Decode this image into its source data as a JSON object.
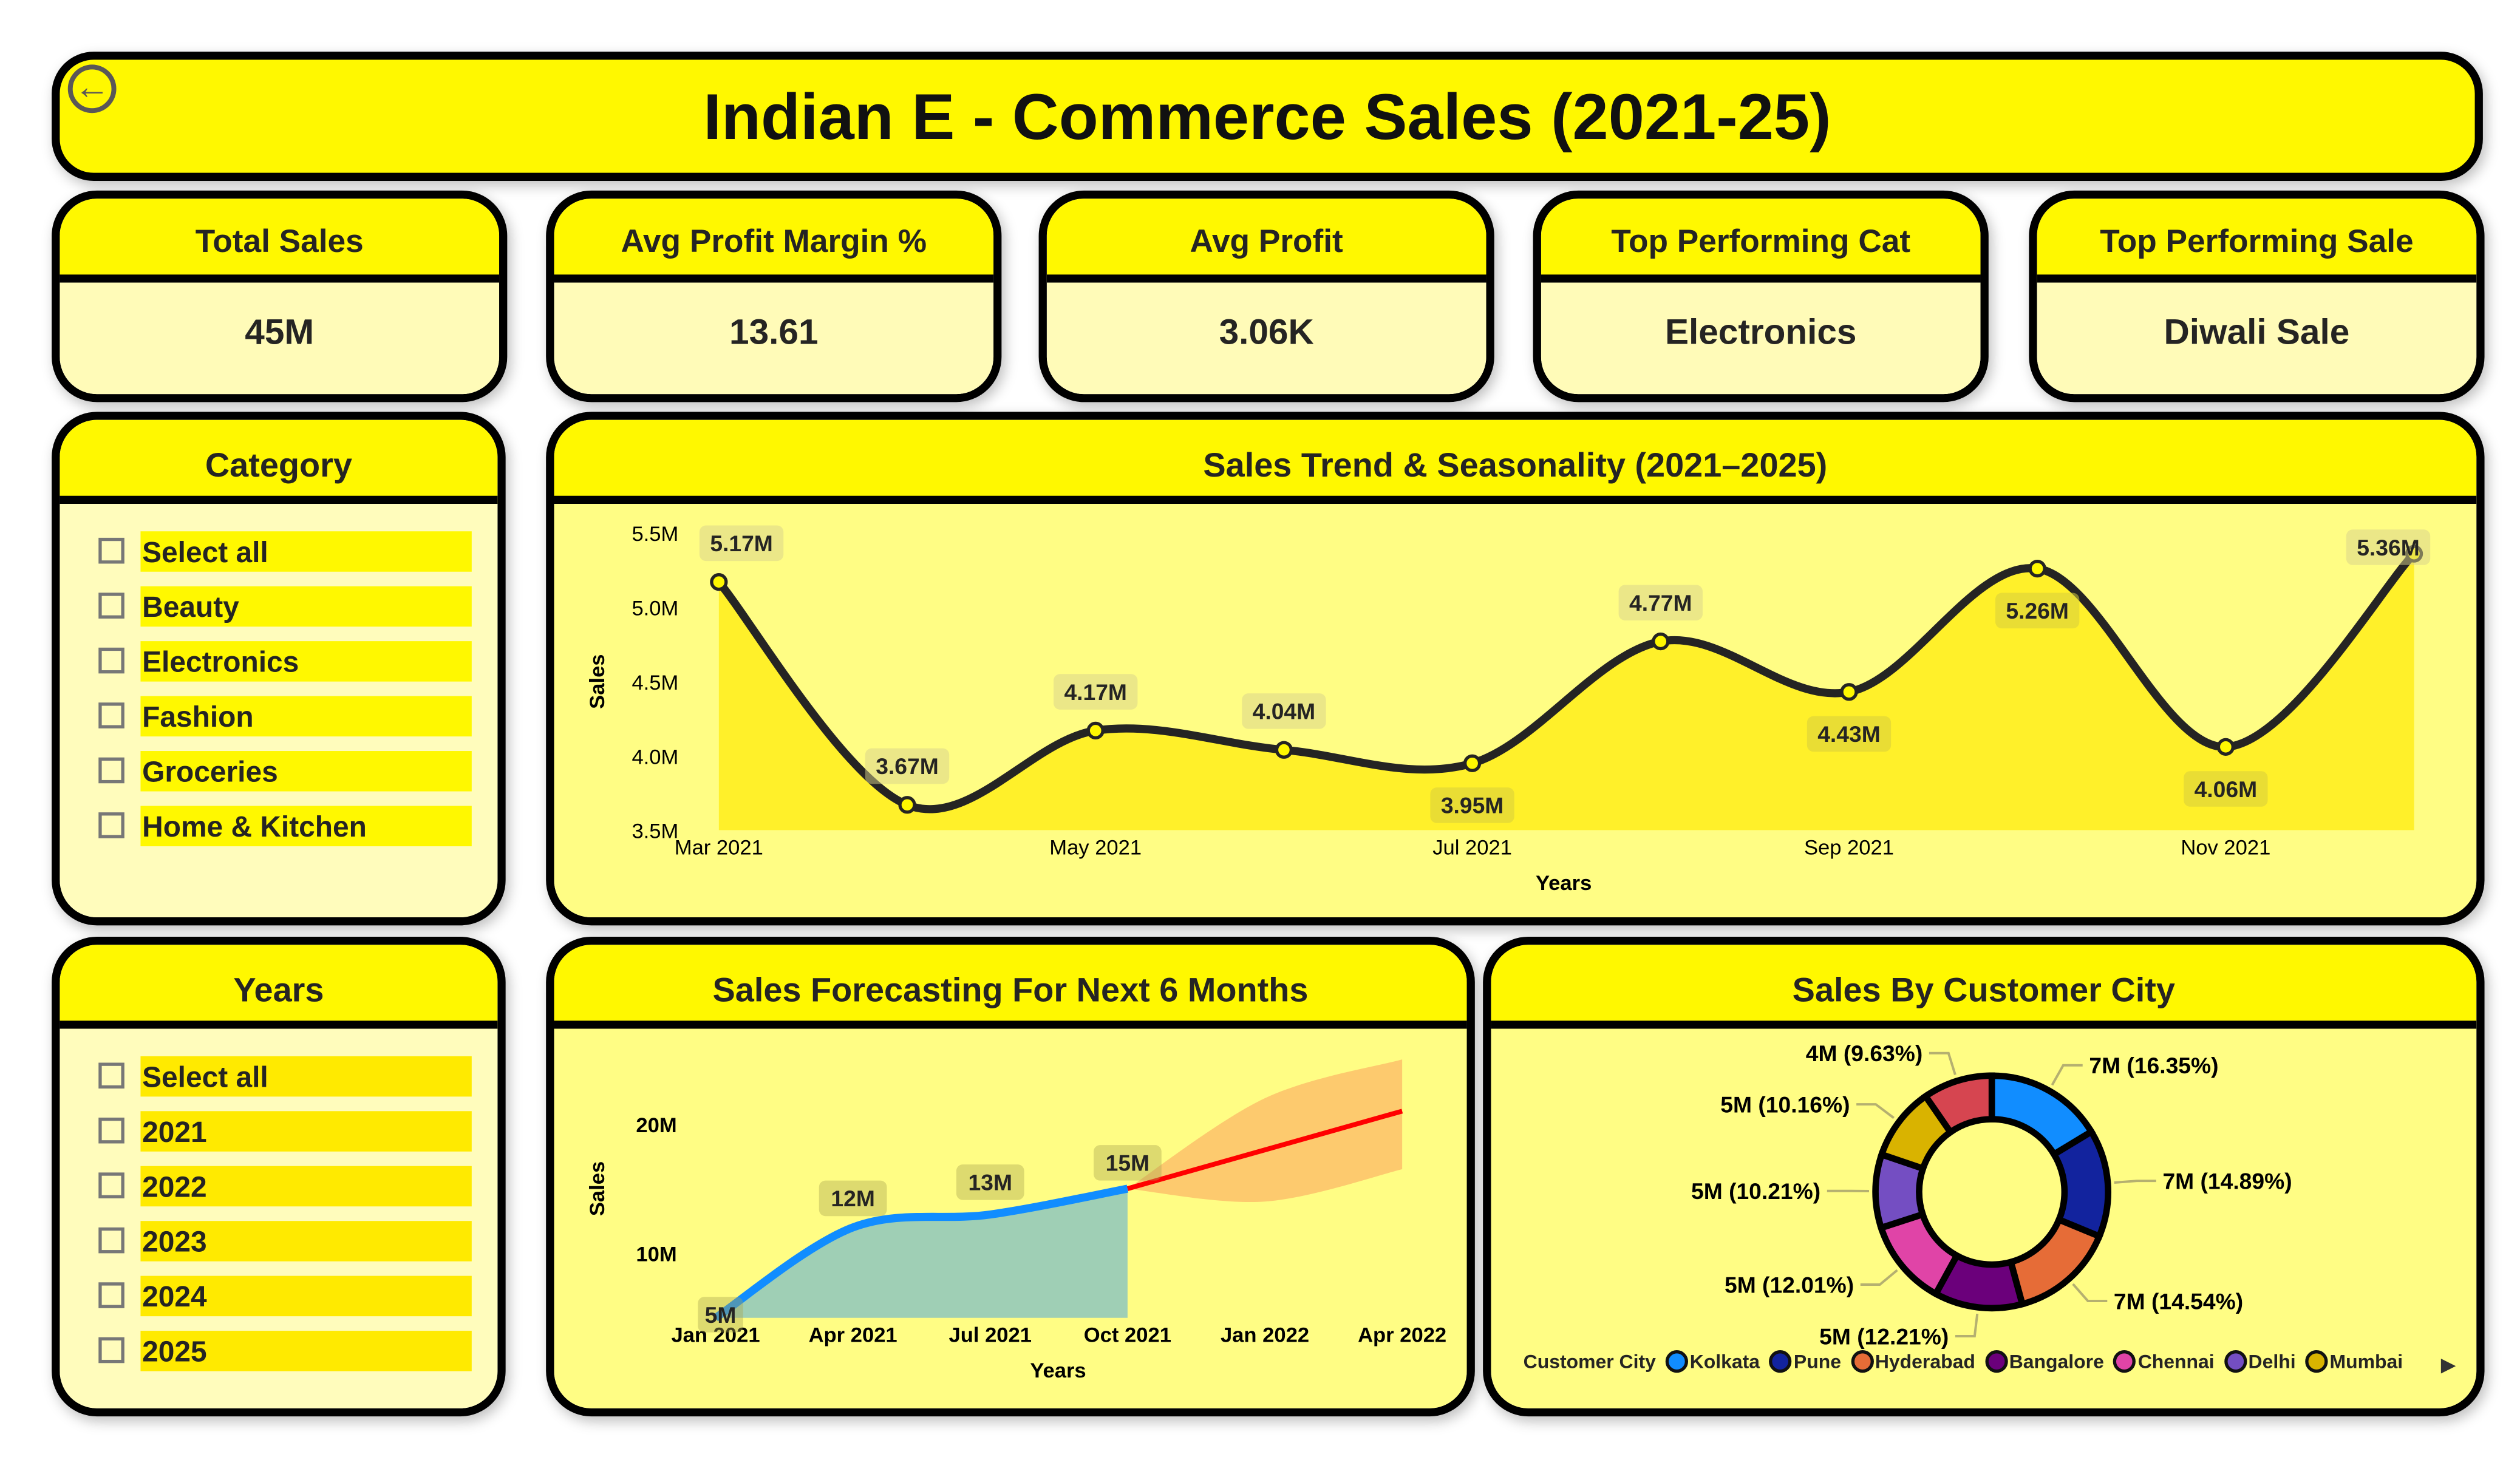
{
  "header": {
    "title": "Indian E - Commerce Sales (2021-25)",
    "back_icon": "arrow-left-circle-icon"
  },
  "kpis": [
    {
      "label": "Total Sales",
      "value": "45M"
    },
    {
      "label": "Avg Profit Margin %",
      "value": "13.61"
    },
    {
      "label": "Avg Profit",
      "value": "3.06K"
    },
    {
      "label": "Top Performing Cat",
      "value": "Electronics"
    },
    {
      "label": "Top Performing Sale",
      "value": "Diwali Sale"
    }
  ],
  "category_slicer": {
    "title": "Category",
    "options": [
      "Select all",
      "Beauty",
      "Electronics",
      "Fashion",
      "Groceries",
      "Home & Kitchen"
    ]
  },
  "years_slicer": {
    "title": "Years",
    "options": [
      "Select all",
      "2021",
      "2022",
      "2023",
      "2024",
      "2025"
    ]
  },
  "colors": {
    "header": "#FFF800",
    "kpi_body": "#FFFBB8",
    "chart_bg": "#FFFD84",
    "trend_area": "#FFF02A",
    "trend_line": "#252423",
    "actual_line": "#118DFF",
    "actual_area": "#9FCFB5",
    "forecast_line": "#FF0000",
    "forecast_band": "#FDC46B"
  },
  "chart_data": [
    {
      "type": "area",
      "title": "Sales Trend & Seasonality (2021–2025)",
      "xlabel": "Years",
      "ylabel": "Sales",
      "x": [
        "Mar 2021",
        "Apr 2021",
        "May 2021",
        "Jun 2021",
        "Jul 2021",
        "Aug 2021",
        "Sep 2021",
        "Oct 2021",
        "Nov 2021",
        "Dec 2021"
      ],
      "values": [
        5.17,
        3.67,
        4.17,
        4.04,
        3.95,
        4.77,
        4.43,
        5.26,
        4.06,
        5.36
      ],
      "data_labels": [
        "5.17M",
        "3.67M",
        "4.17M",
        "4.04M",
        "3.95M",
        "4.77M",
        "4.43M",
        "5.26M",
        "4.06M",
        "5.36M"
      ],
      "x_ticks": [
        "Mar 2021",
        "May 2021",
        "Jul 2021",
        "Sep 2021",
        "Nov 2021"
      ],
      "y_ticks": [
        "3.5M",
        "4.0M",
        "4.5M",
        "5.0M",
        "5.5M"
      ],
      "ylim": [
        3.5,
        5.5
      ],
      "y_unit": "M",
      "grid": false
    },
    {
      "type": "line",
      "title": "Sales Forecasting For Next 6 Months",
      "xlabel": "Years",
      "ylabel": "Sales",
      "actual": {
        "x": [
          "Jan 2021",
          "Apr 2021",
          "Jul 2021",
          "Oct 2021"
        ],
        "values": [
          5,
          12,
          13,
          15
        ],
        "data_labels": [
          "5M",
          "12M",
          "13M",
          "15M"
        ]
      },
      "forecast": {
        "x": [
          "Oct 2021",
          "Jan 2022",
          "Apr 2022"
        ],
        "values": [
          15,
          18,
          21
        ],
        "upper": [
          15,
          22,
          25
        ],
        "lower": [
          15,
          14,
          16.5
        ]
      },
      "x_ticks": [
        "Jan 2021",
        "Apr 2021",
        "Jul 2021",
        "Oct 2021",
        "Jan 2022",
        "Apr 2022"
      ],
      "y_ticks": [
        "10M",
        "20M"
      ],
      "ylim": [
        5,
        26
      ],
      "y_unit": "M",
      "grid": false
    },
    {
      "type": "pie",
      "title": "Sales By Customer City",
      "legend_title": "Customer City",
      "legend_position": "bottom",
      "slices": [
        {
          "name": "Kolkata",
          "value": 7,
          "percent": 16.35,
          "label": "7M (16.35%)",
          "color": "#118DFF"
        },
        {
          "name": "Pune",
          "value": 7,
          "percent": 14.89,
          "label": "7M (14.89%)",
          "color": "#12239E"
        },
        {
          "name": "Hyderabad",
          "value": 7,
          "percent": 14.54,
          "label": "7M (14.54%)",
          "color": "#E66C37"
        },
        {
          "name": "Bangalore",
          "value": 5,
          "percent": 12.21,
          "label": "5M (12.21%)",
          "color": "#6B007B"
        },
        {
          "name": "Chennai",
          "value": 5,
          "percent": 12.01,
          "label": "5M (12.01%)",
          "color": "#E044A7"
        },
        {
          "name": "Delhi",
          "value": 5,
          "percent": 10.21,
          "label": "5M (10.21%)",
          "color": "#744EC2"
        },
        {
          "name": "Mumbai",
          "value": 5,
          "percent": 10.16,
          "label": "5M (10.16%)",
          "color": "#D9B300"
        },
        {
          "value": 4,
          "percent": 9.63,
          "label": "4M (9.63%)",
          "color": "#D64550"
        }
      ]
    }
  ]
}
